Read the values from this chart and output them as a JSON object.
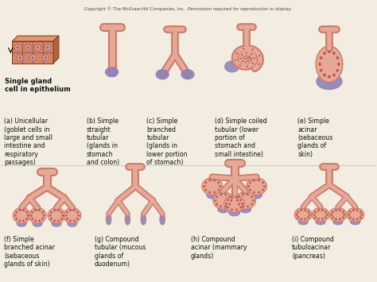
{
  "copyright": "Copyright © The McGraw-Hill Companies, Inc.  Permission required for reproduction or display.",
  "background_color": "#f2ede0",
  "text_color": "#111111",
  "intro_label": "Single gland\ncell in epithelium",
  "glands": [
    {
      "id": "a",
      "label": "(a) Unicellular\n(goblet cells in\nlarge and small\nintestine and\nrespiratory\npassages)"
    },
    {
      "id": "b",
      "label": "(b) Simple\nstraight\ntubular\n(glands in\nstomach\nand colon)"
    },
    {
      "id": "c",
      "label": "(c) Simple\nbranched\ntubular\n(glands in\nlower portion\nof stomach)"
    },
    {
      "id": "d",
      "label": "(d) Simple coiled\ntubular (lower\nportion of\nstomach and\nsmall intestine)"
    },
    {
      "id": "e",
      "label": "(e) Simple\nacinar\n(sebaceous\nglands of\nskin)"
    },
    {
      "id": "f",
      "label": "(f) Simple\nbranched acinar\n(sebaceous\nglands of skin)"
    },
    {
      "id": "g",
      "label": "(g) Compound\ntubular (mucous\nglands of\nduodenum)"
    },
    {
      "id": "h",
      "label": "(h) Compound\nacinar (mammary\nglands)"
    },
    {
      "id": "i",
      "label": "(i) Compound\ntubuloacinar\n(pancreas)"
    }
  ],
  "skin_outer": "#c97b6a",
  "skin_inner": "#e8a898",
  "skin_light": "#f0c0b0",
  "purple": "#9080b8",
  "purple_light": "#b8a8d8",
  "dot": "#b85040",
  "outline": "#a06050"
}
